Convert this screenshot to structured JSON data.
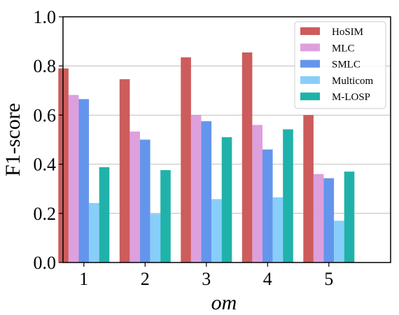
{
  "chart_data": {
    "type": "bar",
    "xlabel": "om",
    "ylabel": "F1-score",
    "categories": [
      "1",
      "2",
      "3",
      "4",
      "5"
    ],
    "ylim": [
      0.0,
      1.0
    ],
    "yticks": [
      "0.0",
      "0.2",
      "0.4",
      "0.6",
      "0.8",
      "1.0"
    ],
    "grid": "horizontal",
    "legend_position": "top-right",
    "series": [
      {
        "name": "HoSIM",
        "color": "#cd5c5c",
        "values": [
          0.79,
          0.746,
          0.835,
          0.855,
          0.6
        ]
      },
      {
        "name": "MLC",
        "color": "#dda0dd",
        "values": [
          0.682,
          0.533,
          0.6,
          0.56,
          0.36
        ]
      },
      {
        "name": "SMLC",
        "color": "#6495ed",
        "values": [
          0.665,
          0.5,
          0.575,
          0.46,
          0.343
        ]
      },
      {
        "name": "Multicom",
        "color": "#87cefa",
        "values": [
          0.242,
          0.198,
          0.258,
          0.265,
          0.17
        ]
      },
      {
        "name": "M-LOSP",
        "color": "#20b2aa",
        "values": [
          0.388,
          0.376,
          0.51,
          0.542,
          0.37
        ]
      }
    ]
  }
}
